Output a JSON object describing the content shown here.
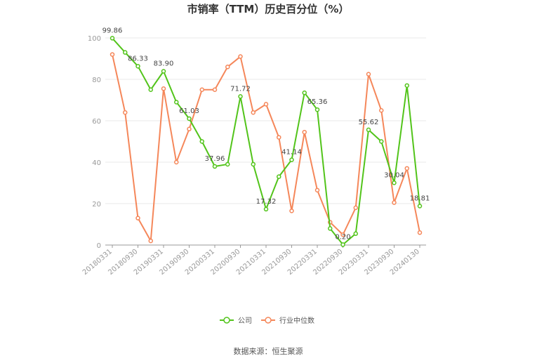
{
  "chart_data": {
    "type": "line",
    "title": "市销率（TTM）历史百分位（%）",
    "ylim": [
      0,
      100
    ],
    "yticks": [
      0,
      20,
      40,
      60,
      80,
      100
    ],
    "x": [
      "20180331",
      "20180630",
      "20180930",
      "20181231",
      "20190331",
      "20190630",
      "20190930",
      "20191231",
      "20200331",
      "20200630",
      "20200930",
      "20201231",
      "20210331",
      "20210630",
      "20210930",
      "20211231",
      "20220331",
      "20220630",
      "20220930",
      "20221231",
      "20230331",
      "20230630",
      "20230930",
      "20231231",
      "20240130"
    ],
    "xticks": [
      "20180331",
      "20180930",
      "20190331",
      "20190930",
      "20200331",
      "20200930",
      "20210331",
      "20210930",
      "20220331",
      "20220930",
      "20230331",
      "20230930",
      "20240130"
    ],
    "series": [
      {
        "name": "公司",
        "color": "#52c41a",
        "values": [
          99.86,
          93,
          86.33,
          75,
          83.9,
          69,
          61.03,
          50,
          37.96,
          39,
          71.72,
          39,
          17.32,
          33,
          41.14,
          73.5,
          65.36,
          8,
          0.2,
          5.5,
          55.62,
          50,
          30.04,
          77,
          18.81
        ]
      },
      {
        "name": "行业中位数",
        "color": "#f5875a",
        "values": [
          92,
          64,
          13,
          2,
          75.5,
          40,
          56,
          75,
          75,
          86,
          91,
          64,
          68,
          52,
          16.5,
          54.5,
          26.5,
          11,
          5,
          18,
          82.5,
          65,
          20.5,
          37,
          6
        ]
      }
    ],
    "data_labels": [
      {
        "index": 0,
        "text": "99.86"
      },
      {
        "index": 2,
        "text": "86.33"
      },
      {
        "index": 4,
        "text": "83.90"
      },
      {
        "index": 6,
        "text": "61.03"
      },
      {
        "index": 8,
        "text": "37.96"
      },
      {
        "index": 10,
        "text": "71.72"
      },
      {
        "index": 12,
        "text": "17.32"
      },
      {
        "index": 14,
        "text": "41.14"
      },
      {
        "index": 16,
        "text": "65.36"
      },
      {
        "index": 18,
        "text": "0.20"
      },
      {
        "index": 20,
        "text": "55.62"
      },
      {
        "index": 22,
        "text": "30.04"
      },
      {
        "index": 24,
        "text": "18.81"
      }
    ],
    "grid": true,
    "legend_position": "bottom"
  },
  "legend": {
    "company": "公司",
    "industry": "行业中位数"
  },
  "source": "数据来源：恒生聚源"
}
